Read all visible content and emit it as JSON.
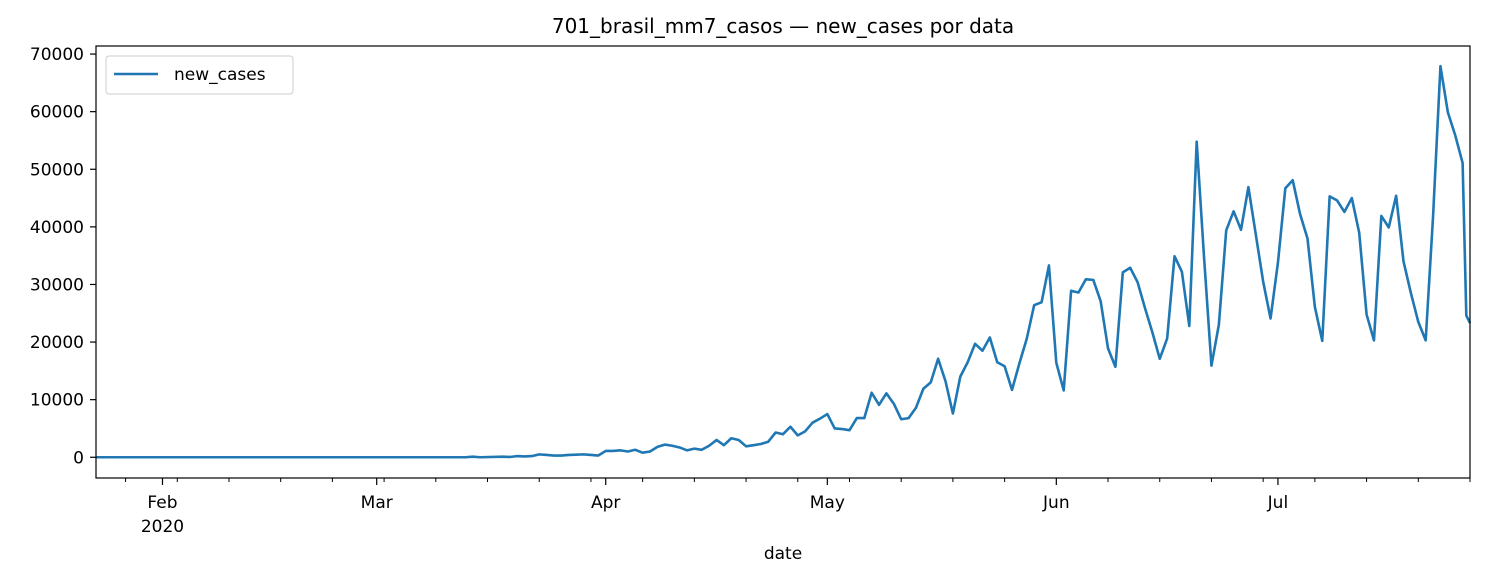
{
  "chart_data": {
    "type": "line",
    "title": "701_brasil_mm7_casos — new_cases por data",
    "xlabel": "date",
    "ylabel": "",
    "x_start": "2020-01-23",
    "x_end": "2020-07-27",
    "xlim": [
      "2020-01-23",
      "2020-07-27"
    ],
    "ylim": [
      -3600,
      71400
    ],
    "y_ticks": [
      0,
      10000,
      20000,
      30000,
      40000,
      50000,
      60000,
      70000
    ],
    "y_tick_labels": [
      "0",
      "10000",
      "20000",
      "30000",
      "40000",
      "50000",
      "60000",
      "70000"
    ],
    "x_major_ticks": [
      {
        "date": "2020-02-01",
        "label": "Feb",
        "sublabel": "2020"
      },
      {
        "date": "2020-03-01",
        "label": "Mar",
        "sublabel": ""
      },
      {
        "date": "2020-04-01",
        "label": "Apr",
        "sublabel": ""
      },
      {
        "date": "2020-05-01",
        "label": "May",
        "sublabel": ""
      },
      {
        "date": "2020-06-01",
        "label": "Jun",
        "sublabel": ""
      },
      {
        "date": "2020-07-01",
        "label": "Jul",
        "sublabel": ""
      }
    ],
    "grid": false,
    "legend": {
      "position": "top-left",
      "entries": [
        "new_cases"
      ]
    },
    "series": [
      {
        "name": "new_cases",
        "color": "#1f77b4",
        "points": [
          [
            "2020-01-23",
            0
          ],
          [
            "2020-02-26",
            0
          ],
          [
            "2020-03-13",
            0
          ],
          [
            "2020-03-14",
            100
          ],
          [
            "2020-03-15",
            0
          ],
          [
            "2020-03-18",
            100
          ],
          [
            "2020-03-19",
            50
          ],
          [
            "2020-03-20",
            200
          ],
          [
            "2020-03-21",
            150
          ],
          [
            "2020-03-22",
            200
          ],
          [
            "2020-03-23",
            500
          ],
          [
            "2020-03-24",
            400
          ],
          [
            "2020-03-25",
            300
          ],
          [
            "2020-03-26",
            300
          ],
          [
            "2020-03-27",
            400
          ],
          [
            "2020-03-28",
            450
          ],
          [
            "2020-03-29",
            500
          ],
          [
            "2020-03-30",
            400
          ],
          [
            "2020-03-31",
            300
          ],
          [
            "2020-04-01",
            1100
          ],
          [
            "2020-04-02",
            1100
          ],
          [
            "2020-04-03",
            1200
          ],
          [
            "2020-04-04",
            1000
          ],
          [
            "2020-04-05",
            1300
          ],
          [
            "2020-04-06",
            800
          ],
          [
            "2020-04-07",
            1000
          ],
          [
            "2020-04-08",
            1800
          ],
          [
            "2020-04-09",
            2200
          ],
          [
            "2020-04-10",
            2000
          ],
          [
            "2020-04-11",
            1700
          ],
          [
            "2020-04-12",
            1200
          ],
          [
            "2020-04-13",
            1500
          ],
          [
            "2020-04-14",
            1300
          ],
          [
            "2020-04-15",
            2000
          ],
          [
            "2020-04-16",
            3000
          ],
          [
            "2020-04-17",
            2100
          ],
          [
            "2020-04-18",
            3300
          ],
          [
            "2020-04-19",
            3000
          ],
          [
            "2020-04-20",
            1900
          ],
          [
            "2020-04-21",
            2100
          ],
          [
            "2020-04-22",
            2300
          ],
          [
            "2020-04-23",
            2700
          ],
          [
            "2020-04-24",
            4300
          ],
          [
            "2020-04-25",
            4000
          ],
          [
            "2020-04-26",
            5300
          ],
          [
            "2020-04-27",
            3800
          ],
          [
            "2020-04-28",
            4500
          ],
          [
            "2020-04-29",
            6000
          ],
          [
            "2020-04-30",
            6700
          ],
          [
            "2020-05-01",
            7500
          ],
          [
            "2020-05-02",
            5000
          ],
          [
            "2020-05-03",
            4900
          ],
          [
            "2020-05-04",
            4700
          ],
          [
            "2020-05-05",
            6800
          ],
          [
            "2020-05-06",
            6800
          ],
          [
            "2020-05-07",
            11200
          ],
          [
            "2020-05-08",
            9100
          ],
          [
            "2020-05-09",
            11100
          ],
          [
            "2020-05-10",
            9300
          ],
          [
            "2020-05-11",
            6600
          ],
          [
            "2020-05-12",
            6800
          ],
          [
            "2020-05-13",
            8600
          ],
          [
            "2020-05-14",
            11900
          ],
          [
            "2020-05-15",
            13000
          ],
          [
            "2020-05-16",
            17100
          ],
          [
            "2020-05-17",
            13200
          ],
          [
            "2020-05-18",
            7600
          ],
          [
            "2020-05-19",
            14000
          ],
          [
            "2020-05-20",
            16500
          ],
          [
            "2020-05-21",
            19700
          ],
          [
            "2020-05-22",
            18500
          ],
          [
            "2020-05-23",
            20800
          ],
          [
            "2020-05-24",
            16500
          ],
          [
            "2020-05-25",
            15800
          ],
          [
            "2020-05-26",
            11700
          ],
          [
            "2020-05-27",
            16300
          ],
          [
            "2020-05-28",
            20600
          ],
          [
            "2020-05-29",
            26400
          ],
          [
            "2020-05-30",
            26900
          ],
          [
            "2020-05-31",
            33300
          ],
          [
            "2020-06-01",
            16400
          ],
          [
            "2020-06-02",
            11600
          ],
          [
            "2020-06-03",
            28900
          ],
          [
            "2020-06-04",
            28600
          ],
          [
            "2020-06-05",
            30900
          ],
          [
            "2020-06-06",
            30800
          ],
          [
            "2020-06-07",
            27100
          ],
          [
            "2020-06-08",
            18900
          ],
          [
            "2020-06-09",
            15700
          ],
          [
            "2020-06-10",
            32100
          ],
          [
            "2020-06-11",
            32900
          ],
          [
            "2020-06-12",
            30400
          ],
          [
            "2020-06-13",
            25900
          ],
          [
            "2020-06-14",
            21700
          ],
          [
            "2020-06-15",
            17100
          ],
          [
            "2020-06-16",
            20600
          ],
          [
            "2020-06-17",
            34900
          ],
          [
            "2020-06-18",
            32200
          ],
          [
            "2020-06-19",
            22800
          ],
          [
            "2020-06-20",
            54800
          ],
          [
            "2020-06-21",
            34700
          ],
          [
            "2020-06-22",
            15900
          ],
          [
            "2020-06-23",
            23000
          ],
          [
            "2020-06-24",
            39400
          ],
          [
            "2020-06-25",
            42700
          ],
          [
            "2020-06-26",
            39500
          ],
          [
            "2020-06-27",
            46900
          ],
          [
            "2020-06-28",
            38700
          ],
          [
            "2020-06-29",
            30500
          ],
          [
            "2020-06-30",
            24100
          ],
          [
            "2020-07-01",
            33800
          ],
          [
            "2020-07-02",
            46700
          ],
          [
            "2020-07-03",
            48100
          ],
          [
            "2020-07-04",
            42200
          ],
          [
            "2020-07-05",
            38000
          ],
          [
            "2020-07-06",
            26100
          ],
          [
            "2020-07-07",
            20200
          ],
          [
            "2020-07-08",
            45300
          ],
          [
            "2020-07-09",
            44600
          ],
          [
            "2020-07-10",
            42600
          ],
          [
            "2020-07-11",
            45000
          ],
          [
            "2020-07-12",
            39000
          ],
          [
            "2020-07-13",
            24800
          ],
          [
            "2020-07-14",
            20300
          ],
          [
            "2020-07-15",
            41900
          ],
          [
            "2020-07-16",
            39900
          ],
          [
            "2020-07-17",
            45400
          ],
          [
            "2020-07-18",
            34000
          ],
          [
            "2020-07-19",
            28500
          ],
          [
            "2020-07-20",
            23500
          ],
          [
            "2020-07-21",
            20300
          ],
          [
            "2020-07-22",
            41800
          ],
          [
            "2020-07-23",
            67900
          ],
          [
            "2020-07-24",
            59900
          ],
          [
            "2020-07-25",
            55900
          ],
          [
            "2020-07-26",
            51100
          ],
          [
            "2020-07-26",
            24600
          ],
          [
            "2020-07-27",
            23300
          ]
        ]
      }
    ]
  }
}
